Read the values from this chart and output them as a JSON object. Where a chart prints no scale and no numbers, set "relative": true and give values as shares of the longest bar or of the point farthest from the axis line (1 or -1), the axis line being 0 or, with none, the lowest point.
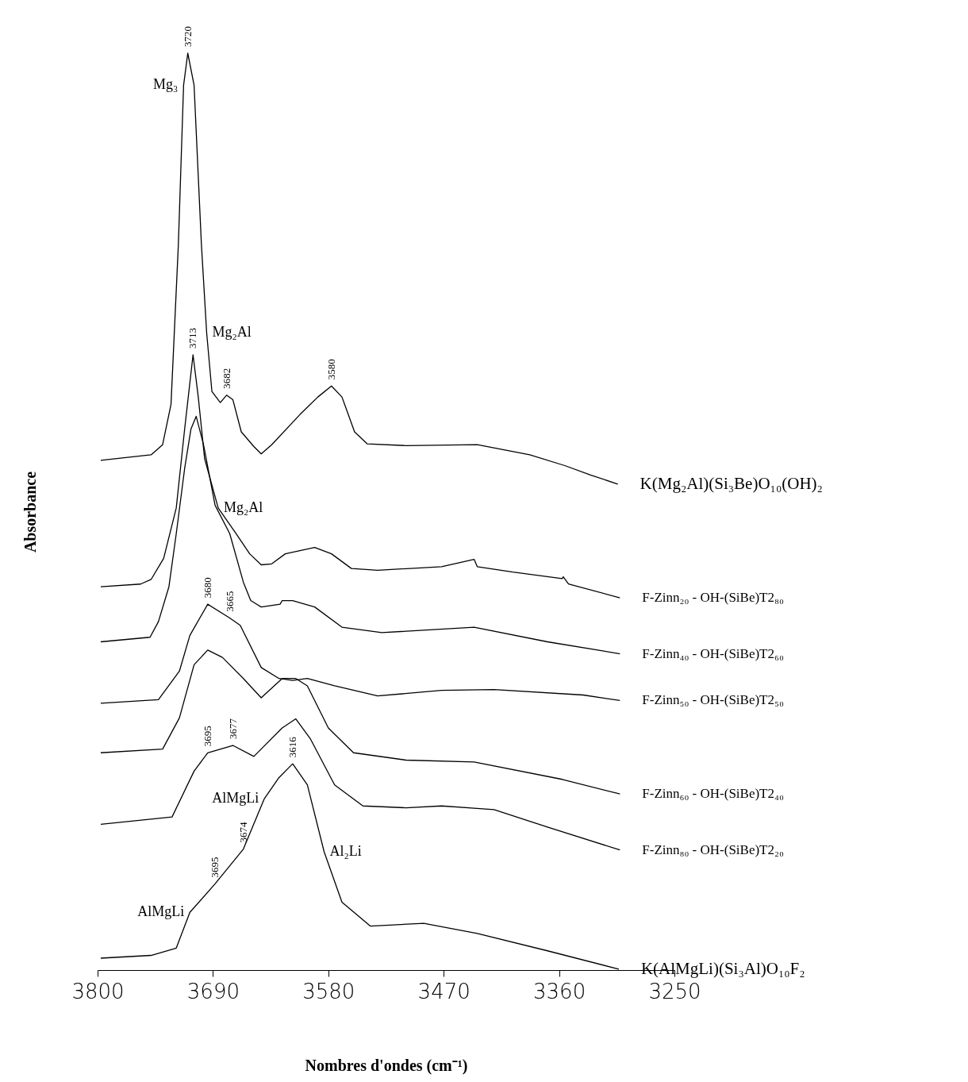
{
  "chart_data": {
    "type": "line",
    "relative": true,
    "xlabel": "Nombres d'ondes (cm⁻¹)",
    "ylabel": "Absorbance",
    "xlim": [
      3800,
      3250
    ],
    "xticks": [
      3800,
      3690,
      3580,
      3470,
      3360,
      3250
    ],
    "series": [
      {
        "name": "K(Mg₂Al)(Si₃Be)O₁₀(OH)₂",
        "color": "#000000",
        "x": [
          3797,
          3749,
          3738,
          3730,
          3723,
          3718,
          3714,
          3708,
          3701,
          3696,
          3691,
          3683,
          3677,
          3671,
          3663,
          3651,
          3644,
          3634,
          3607,
          3590,
          3577,
          3567,
          3555,
          3543,
          3506,
          3438,
          3388,
          3354,
          3330,
          3304
        ],
        "values": [
          0.556,
          0.562,
          0.573,
          0.617,
          0.791,
          0.965,
          1.0,
          0.965,
          0.791,
          0.695,
          0.631,
          0.619,
          0.627,
          0.622,
          0.587,
          0.571,
          0.563,
          0.573,
          0.606,
          0.625,
          0.637,
          0.625,
          0.587,
          0.574,
          0.572,
          0.573,
          0.562,
          0.55,
          0.54,
          0.53
        ]
      },
      {
        "name": "F-Zinn₂₀ - OH-(SiBe)T2₈₀",
        "color": "#000000",
        "x": [
          3797,
          3759,
          3749,
          3737,
          3725,
          3717,
          3709,
          3704,
          3698,
          3685,
          3668,
          3655,
          3644,
          3634,
          3621,
          3593,
          3577,
          3558,
          3533,
          3472,
          3441,
          3438,
          3404,
          3357,
          3356,
          3351,
          3302
        ],
        "values": [
          0.418,
          0.421,
          0.426,
          0.449,
          0.504,
          0.59,
          0.671,
          0.625,
          0.558,
          0.504,
          0.476,
          0.454,
          0.442,
          0.443,
          0.454,
          0.461,
          0.454,
          0.438,
          0.436,
          0.44,
          0.448,
          0.44,
          0.434,
          0.427,
          0.429,
          0.421,
          0.406
        ]
      },
      {
        "name": "F-Zinn₄₀ - OH-(SiBe)T2₆₀",
        "color": "#000000",
        "x": [
          3797,
          3750,
          3742,
          3732,
          3725,
          3717,
          3711,
          3706,
          3699,
          3688,
          3674,
          3661,
          3654,
          3644,
          3626,
          3624,
          3614,
          3593,
          3567,
          3529,
          3441,
          3371,
          3302
        ],
        "values": [
          0.358,
          0.363,
          0.38,
          0.418,
          0.476,
          0.547,
          0.59,
          0.604,
          0.573,
          0.507,
          0.476,
          0.423,
          0.403,
          0.396,
          0.399,
          0.403,
          0.403,
          0.396,
          0.374,
          0.368,
          0.374,
          0.358,
          0.345
        ]
      },
      {
        "name": "F-Zinn₅₀ - OH-(SiBe)T2₅₀",
        "color": "#000000",
        "x": [
          3797,
          3742,
          3722,
          3712,
          3695,
          3674,
          3664,
          3644,
          3627,
          3614,
          3600,
          3574,
          3533,
          3472,
          3422,
          3337,
          3302
        ],
        "values": [
          0.291,
          0.295,
          0.326,
          0.365,
          0.399,
          0.384,
          0.376,
          0.33,
          0.318,
          0.316,
          0.318,
          0.31,
          0.299,
          0.305,
          0.306,
          0.3,
          0.294
        ]
      },
      {
        "name": "F-Zinn₆₀ - OH-(SiBe)T2₄₀",
        "color": "#000000",
        "x": [
          3797,
          3738,
          3722,
          3708,
          3695,
          3681,
          3661,
          3644,
          3624,
          3611,
          3600,
          3580,
          3556,
          3506,
          3441,
          3357,
          3302
        ],
        "values": [
          0.237,
          0.241,
          0.275,
          0.333,
          0.349,
          0.341,
          0.318,
          0.297,
          0.318,
          0.318,
          0.31,
          0.264,
          0.237,
          0.229,
          0.227,
          0.208,
          0.192
        ]
      },
      {
        "name": "F-Zinn₈₀ - OH-(SiBe)T2₂₀",
        "color": "#000000",
        "x": [
          3797,
          3729,
          3708,
          3695,
          3671,
          3651,
          3644,
          3624,
          3611,
          3597,
          3574,
          3547,
          3506,
          3472,
          3422,
          3371,
          3302
        ],
        "values": [
          0.159,
          0.167,
          0.217,
          0.237,
          0.245,
          0.233,
          0.241,
          0.264,
          0.274,
          0.252,
          0.202,
          0.179,
          0.177,
          0.179,
          0.175,
          0.156,
          0.131
        ]
      },
      {
        "name": "K(AlMgLi)(Si₃Al)O₁₀F₂",
        "color": "#000000",
        "x": [
          3797,
          3749,
          3725,
          3712,
          3688,
          3661,
          3641,
          3627,
          3614,
          3600,
          3584,
          3567,
          3540,
          3489,
          3438,
          3371,
          3303
        ],
        "values": [
          0.013,
          0.016,
          0.024,
          0.063,
          0.094,
          0.132,
          0.187,
          0.21,
          0.225,
          0.202,
          0.129,
          0.074,
          0.048,
          0.051,
          0.04,
          0.021,
          0.001
        ]
      }
    ],
    "annotations": [
      {
        "text": "3720",
        "x": 3714,
        "y": 1.0
      },
      {
        "text": "Mg₃",
        "x": 3718,
        "y": 0.965
      },
      {
        "text": "3713",
        "x": 3709,
        "y": 0.671
      },
      {
        "text": "Mg₂Al",
        "x": 3696,
        "y": 0.695
      },
      {
        "text": "3682",
        "x": 3677,
        "y": 0.627
      },
      {
        "text": "3580",
        "x": 3577,
        "y": 0.637
      },
      {
        "text": "Mg₂Al",
        "x": 3685,
        "y": 0.504
      },
      {
        "text": "3680",
        "x": 3695,
        "y": 0.399
      },
      {
        "text": "3665",
        "x": 3674,
        "y": 0.384
      },
      {
        "text": "3695",
        "x": 3695,
        "y": 0.237
      },
      {
        "text": "3677",
        "x": 3671,
        "y": 0.245
      },
      {
        "text": "3616",
        "x": 3614,
        "y": 0.225
      },
      {
        "text": "AlMgLi",
        "x": 3641,
        "y": 0.187
      },
      {
        "text": "3674",
        "x": 3661,
        "y": 0.132
      },
      {
        "text": "3695",
        "x": 3688,
        "y": 0.094
      },
      {
        "text": "Al₂Li",
        "x": 3584,
        "y": 0.129
      },
      {
        "text": "AlMgLi",
        "x": 3712,
        "y": 0.063
      }
    ]
  }
}
